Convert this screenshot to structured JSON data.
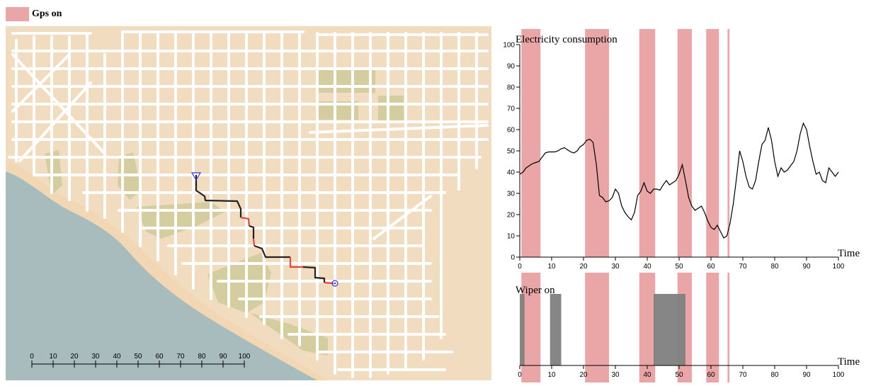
{
  "legend": {
    "label": "Gps on",
    "color": "#eaa6a6"
  },
  "map": {
    "scalebar_ticks": [
      "0",
      "10",
      "20",
      "30",
      "40",
      "50",
      "60",
      "70",
      "80",
      "90",
      "100"
    ],
    "land_color": "#f2dcc0",
    "water_color": "#a9bcbd",
    "park_color": "#d4cda0"
  },
  "chart_data": [
    {
      "type": "line",
      "title": "Electricity consumption",
      "xlabel": "Time",
      "ylabel": "",
      "xlim": [
        0,
        100
      ],
      "ylim": [
        0,
        100
      ],
      "x_ticks": [
        0,
        10,
        20,
        30,
        40,
        50,
        60,
        70,
        80,
        90,
        100
      ],
      "y_ticks": [
        0,
        10,
        20,
        30,
        40,
        50,
        60,
        70,
        80,
        90,
        100
      ],
      "gps_on_intervals": [
        [
          0.5,
          6.5
        ],
        [
          20.5,
          28
        ],
        [
          37.5,
          42.5
        ],
        [
          49.5,
          54
        ],
        [
          58.5,
          62.5
        ],
        [
          65.2,
          65.8
        ]
      ],
      "series": [
        {
          "color": "#000000",
          "x": [
            0,
            1,
            2,
            3,
            4,
            5,
            6,
            7,
            8,
            9,
            10,
            11,
            12,
            13,
            14,
            15,
            16,
            17,
            18,
            19,
            20,
            21,
            22,
            23,
            24,
            25,
            26,
            27,
            28,
            29,
            30,
            31,
            32,
            33,
            34,
            35,
            36,
            37,
            38,
            39,
            40,
            41,
            42,
            43,
            44,
            45,
            46,
            47,
            48,
            49,
            50,
            51,
            52,
            53,
            54,
            55,
            56,
            57,
            58,
            59,
            60,
            61,
            62,
            63,
            64,
            65,
            66,
            67,
            68,
            69,
            70,
            71,
            72,
            73,
            74,
            75,
            76,
            77,
            78,
            79,
            80,
            81,
            82,
            83,
            84,
            85,
            86,
            87,
            88,
            89,
            90,
            91,
            92,
            93,
            94,
            95,
            96,
            97,
            98,
            99,
            100
          ],
          "values": [
            39,
            40,
            42,
            43,
            44,
            44.5,
            45,
            47,
            49,
            49.5,
            49.5,
            49.5,
            50,
            51,
            51.5,
            50.5,
            49.5,
            49,
            50,
            52,
            53,
            55,
            55.5,
            54,
            44,
            29,
            28,
            26,
            26.5,
            28,
            32,
            30,
            24,
            21,
            19,
            17.5,
            21,
            29,
            31,
            35,
            31,
            30,
            32,
            32,
            31.5,
            34,
            36,
            34,
            35,
            36,
            39,
            43.5,
            36,
            28,
            24,
            22,
            23,
            24,
            21,
            17,
            14,
            13,
            15,
            12,
            9,
            10,
            16,
            25,
            37,
            50,
            45,
            38,
            33,
            32,
            36,
            45,
            53,
            55,
            61,
            55,
            45,
            38,
            42,
            40,
            41,
            43,
            45,
            50,
            58,
            63,
            60,
            52,
            45,
            39,
            40,
            36,
            35,
            42,
            40,
            38,
            40
          ]
        }
      ]
    },
    {
      "type": "bar",
      "title": "Wiper on",
      "xlabel": "Time",
      "xlim": [
        0,
        100
      ],
      "x_ticks": [
        0,
        10,
        20,
        30,
        40,
        50,
        60,
        70,
        80,
        90,
        100
      ],
      "bar_color": "#7f7f7f",
      "gps_on_intervals": [
        [
          0.5,
          6.5
        ],
        [
          20.5,
          28
        ],
        [
          37.5,
          42.5
        ],
        [
          49.5,
          54
        ],
        [
          58.5,
          62.5
        ],
        [
          65.2,
          65.8
        ]
      ],
      "wiper_on_intervals": [
        [
          0,
          1.5
        ],
        [
          9.5,
          13
        ],
        [
          42,
          52
        ]
      ]
    }
  ]
}
